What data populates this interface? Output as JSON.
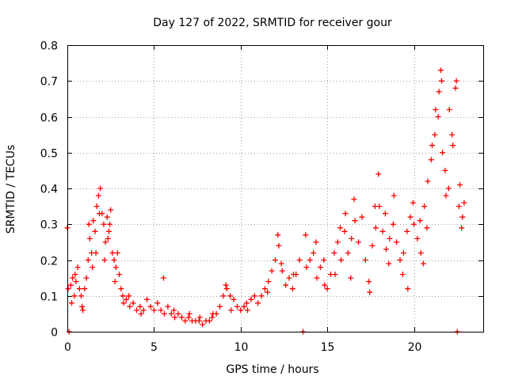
{
  "chart_data": {
    "type": "scatter",
    "title": "Day 127 of 2022, SRMTID for receiver gour",
    "xlabel": "GPS time / hours",
    "ylabel": "SRMTID / TECUs",
    "xlim": [
      0,
      24
    ],
    "ylim": [
      0,
      0.8
    ],
    "xticks": [
      0,
      5,
      10,
      15,
      20
    ],
    "yticks": [
      0,
      0.1,
      0.2,
      0.3,
      0.4,
      0.5,
      0.6,
      0.7,
      0.8
    ],
    "xtick_labels": [
      "0",
      "5",
      "10",
      "15",
      "20"
    ],
    "ytick_labels": [
      "0",
      "0.1",
      "0.2",
      "0.3",
      "0.4",
      "0.5",
      "0.6",
      "0.7",
      "0.8"
    ],
    "grid": true,
    "marker": "+",
    "color": "#ff0000",
    "series": [
      {
        "name": "SRMTID",
        "points": [
          [
            0.0,
            0.29
          ],
          [
            0.1,
            0.0
          ],
          [
            0.2,
            0.13
          ],
          [
            0.3,
            0.15
          ],
          [
            0.4,
            0.1
          ],
          [
            0.5,
            0.14
          ],
          [
            0.6,
            0.18
          ],
          [
            0.7,
            0.12
          ],
          [
            0.8,
            0.1
          ],
          [
            0.9,
            0.06
          ],
          [
            1.0,
            0.12
          ],
          [
            1.1,
            0.15
          ],
          [
            1.2,
            0.2
          ],
          [
            1.3,
            0.26
          ],
          [
            1.4,
            0.22
          ],
          [
            1.5,
            0.31
          ],
          [
            1.6,
            0.28
          ],
          [
            1.7,
            0.35
          ],
          [
            1.8,
            0.38
          ],
          [
            1.9,
            0.4
          ],
          [
            2.0,
            0.33
          ],
          [
            2.1,
            0.3
          ],
          [
            2.2,
            0.25
          ],
          [
            2.3,
            0.32
          ],
          [
            2.4,
            0.28
          ],
          [
            2.5,
            0.34
          ],
          [
            2.6,
            0.22
          ],
          [
            2.7,
            0.2
          ],
          [
            2.8,
            0.18
          ],
          [
            2.9,
            0.22
          ],
          [
            3.0,
            0.16
          ],
          [
            3.1,
            0.12
          ],
          [
            3.2,
            0.1
          ],
          [
            3.4,
            0.09
          ],
          [
            3.6,
            0.07
          ],
          [
            3.8,
            0.08
          ],
          [
            4.0,
            0.06
          ],
          [
            4.2,
            0.07
          ],
          [
            4.4,
            0.06
          ],
          [
            4.6,
            0.09
          ],
          [
            4.8,
            0.07
          ],
          [
            5.0,
            0.06
          ],
          [
            5.2,
            0.08
          ],
          [
            5.4,
            0.06
          ],
          [
            5.6,
            0.05
          ],
          [
            5.8,
            0.07
          ],
          [
            6.0,
            0.05
          ],
          [
            6.2,
            0.04
          ],
          [
            6.4,
            0.05
          ],
          [
            6.6,
            0.04
          ],
          [
            6.8,
            0.03
          ],
          [
            7.0,
            0.04
          ],
          [
            7.2,
            0.03
          ],
          [
            7.4,
            0.03
          ],
          [
            7.6,
            0.03
          ],
          [
            7.8,
            0.02
          ],
          [
            8.0,
            0.03
          ],
          [
            8.2,
            0.03
          ],
          [
            8.4,
            0.05
          ],
          [
            8.6,
            0.05
          ],
          [
            8.8,
            0.07
          ],
          [
            9.0,
            0.1
          ],
          [
            9.2,
            0.12
          ],
          [
            9.4,
            0.1
          ],
          [
            9.6,
            0.09
          ],
          [
            9.8,
            0.07
          ],
          [
            10.0,
            0.06
          ],
          [
            10.2,
            0.07
          ],
          [
            10.4,
            0.06
          ],
          [
            10.6,
            0.09
          ],
          [
            10.8,
            0.1
          ],
          [
            11.0,
            0.08
          ],
          [
            11.2,
            0.1
          ],
          [
            11.4,
            0.12
          ],
          [
            11.6,
            0.14
          ],
          [
            11.8,
            0.17
          ],
          [
            12.0,
            0.2
          ],
          [
            12.2,
            0.24
          ],
          [
            12.4,
            0.17
          ],
          [
            12.6,
            0.13
          ],
          [
            12.8,
            0.15
          ],
          [
            13.0,
            0.12
          ],
          [
            13.2,
            0.16
          ],
          [
            13.4,
            0.2
          ],
          [
            13.6,
            0.0
          ],
          [
            13.8,
            0.18
          ],
          [
            14.0,
            0.2
          ],
          [
            14.2,
            0.22
          ],
          [
            14.4,
            0.15
          ],
          [
            14.6,
            0.18
          ],
          [
            14.8,
            0.2
          ],
          [
            15.0,
            0.12
          ],
          [
            15.2,
            0.16
          ],
          [
            15.4,
            0.22
          ],
          [
            15.6,
            0.25
          ],
          [
            15.8,
            0.2
          ],
          [
            16.0,
            0.28
          ],
          [
            16.2,
            0.22
          ],
          [
            16.4,
            0.26
          ],
          [
            16.6,
            0.31
          ],
          [
            16.8,
            0.25
          ],
          [
            17.0,
            0.32
          ],
          [
            17.2,
            0.2
          ],
          [
            17.4,
            0.14
          ],
          [
            17.6,
            0.24
          ],
          [
            17.8,
            0.29
          ],
          [
            18.0,
            0.35
          ],
          [
            18.2,
            0.28
          ],
          [
            18.4,
            0.23
          ],
          [
            18.6,
            0.26
          ],
          [
            18.8,
            0.3
          ],
          [
            19.0,
            0.25
          ],
          [
            19.2,
            0.2
          ],
          [
            19.4,
            0.22
          ],
          [
            19.6,
            0.28
          ],
          [
            19.8,
            0.32
          ],
          [
            20.0,
            0.3
          ],
          [
            20.2,
            0.26
          ],
          [
            20.4,
            0.22
          ],
          [
            20.6,
            0.35
          ],
          [
            20.8,
            0.42
          ],
          [
            21.0,
            0.48
          ],
          [
            21.2,
            0.55
          ],
          [
            21.4,
            0.6
          ],
          [
            21.6,
            0.7
          ],
          [
            21.8,
            0.45
          ],
          [
            22.0,
            0.4
          ],
          [
            22.2,
            0.55
          ],
          [
            22.4,
            0.68
          ],
          [
            22.5,
            0.0
          ],
          [
            22.6,
            0.35
          ],
          [
            22.8,
            0.32
          ],
          [
            0.05,
            0.12
          ],
          [
            0.25,
            0.08
          ],
          [
            0.45,
            0.16
          ],
          [
            0.85,
            0.07
          ],
          [
            1.25,
            0.3
          ],
          [
            1.45,
            0.18
          ],
          [
            1.65,
            0.22
          ],
          [
            1.85,
            0.33
          ],
          [
            2.15,
            0.2
          ],
          [
            2.35,
            0.26
          ],
          [
            2.45,
            0.3
          ],
          [
            2.75,
            0.14
          ],
          [
            3.25,
            0.08
          ],
          [
            3.55,
            0.1
          ],
          [
            4.25,
            0.05
          ],
          [
            5.55,
            0.15
          ],
          [
            6.15,
            0.06
          ],
          [
            7.05,
            0.05
          ],
          [
            7.65,
            0.04
          ],
          [
            8.35,
            0.04
          ],
          [
            9.15,
            0.13
          ],
          [
            9.45,
            0.06
          ],
          [
            10.35,
            0.08
          ],
          [
            11.55,
            0.11
          ],
          [
            12.15,
            0.27
          ],
          [
            12.35,
            0.19
          ],
          [
            13.05,
            0.16
          ],
          [
            13.75,
            0.27
          ],
          [
            14.35,
            0.25
          ],
          [
            14.85,
            0.13
          ],
          [
            15.45,
            0.16
          ],
          [
            15.75,
            0.29
          ],
          [
            16.05,
            0.33
          ],
          [
            16.35,
            0.15
          ],
          [
            16.55,
            0.37
          ],
          [
            17.45,
            0.11
          ],
          [
            17.75,
            0.35
          ],
          [
            17.95,
            0.44
          ],
          [
            18.35,
            0.33
          ],
          [
            18.55,
            0.19
          ],
          [
            18.85,
            0.38
          ],
          [
            19.35,
            0.16
          ],
          [
            19.65,
            0.12
          ],
          [
            19.95,
            0.36
          ],
          [
            20.35,
            0.31
          ],
          [
            20.55,
            0.19
          ],
          [
            20.75,
            0.29
          ],
          [
            21.05,
            0.52
          ],
          [
            21.25,
            0.62
          ],
          [
            21.45,
            0.67
          ],
          [
            21.55,
            0.73
          ],
          [
            21.65,
            0.5
          ],
          [
            21.85,
            0.38
          ],
          [
            22.05,
            0.62
          ],
          [
            22.25,
            0.52
          ],
          [
            22.45,
            0.7
          ],
          [
            22.65,
            0.41
          ],
          [
            22.75,
            0.29
          ],
          [
            22.9,
            0.36
          ]
        ]
      }
    ]
  }
}
